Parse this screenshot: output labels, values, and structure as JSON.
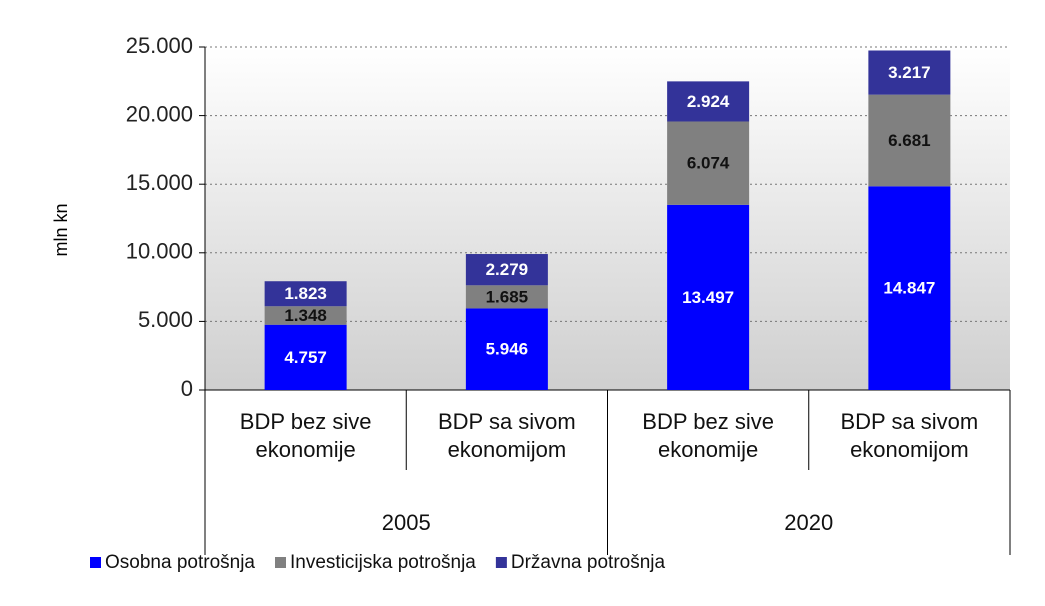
{
  "chart_data": {
    "type": "stacked_bar",
    "y_label": "mln kn",
    "categories": [
      "BDP bez sive ekonomije",
      "BDP sa sivom ekonomijom",
      "BDP bez sive ekonomije",
      "BDP sa sivom ekonomijom"
    ],
    "groups": [
      "2005",
      "2020"
    ],
    "series": [
      {
        "name": "Osobna potrošnja",
        "color": "#0000ff",
        "values": [
          4757,
          5946,
          13497,
          14847
        ],
        "value_labels": [
          "4.757",
          "5.946",
          "13.497",
          "14.847"
        ]
      },
      {
        "name": "Investicijska potrošnja",
        "color": "#808080",
        "values": [
          1348,
          1685,
          6074,
          6681
        ],
        "value_labels": [
          "1.348",
          "1.685",
          "6.074",
          "6.681"
        ]
      },
      {
        "name": "Državna potrošnja",
        "color": "#333399",
        "values": [
          1823,
          2279,
          2924,
          3217
        ],
        "value_labels": [
          "1.823",
          "2.279",
          "2.924",
          "3.217"
        ]
      }
    ],
    "ylim": [
      0,
      25000
    ],
    "yticks": [
      0,
      {
        "value": 5000,
        "label": "5.000"
      },
      {
        "value": 10000,
        "label": "10.000"
      },
      {
        "value": 15000,
        "label": "15.000"
      },
      {
        "value": 20000,
        "label": "20.000"
      },
      {
        "value": 25000,
        "label": "25.000"
      }
    ],
    "grid": true
  }
}
